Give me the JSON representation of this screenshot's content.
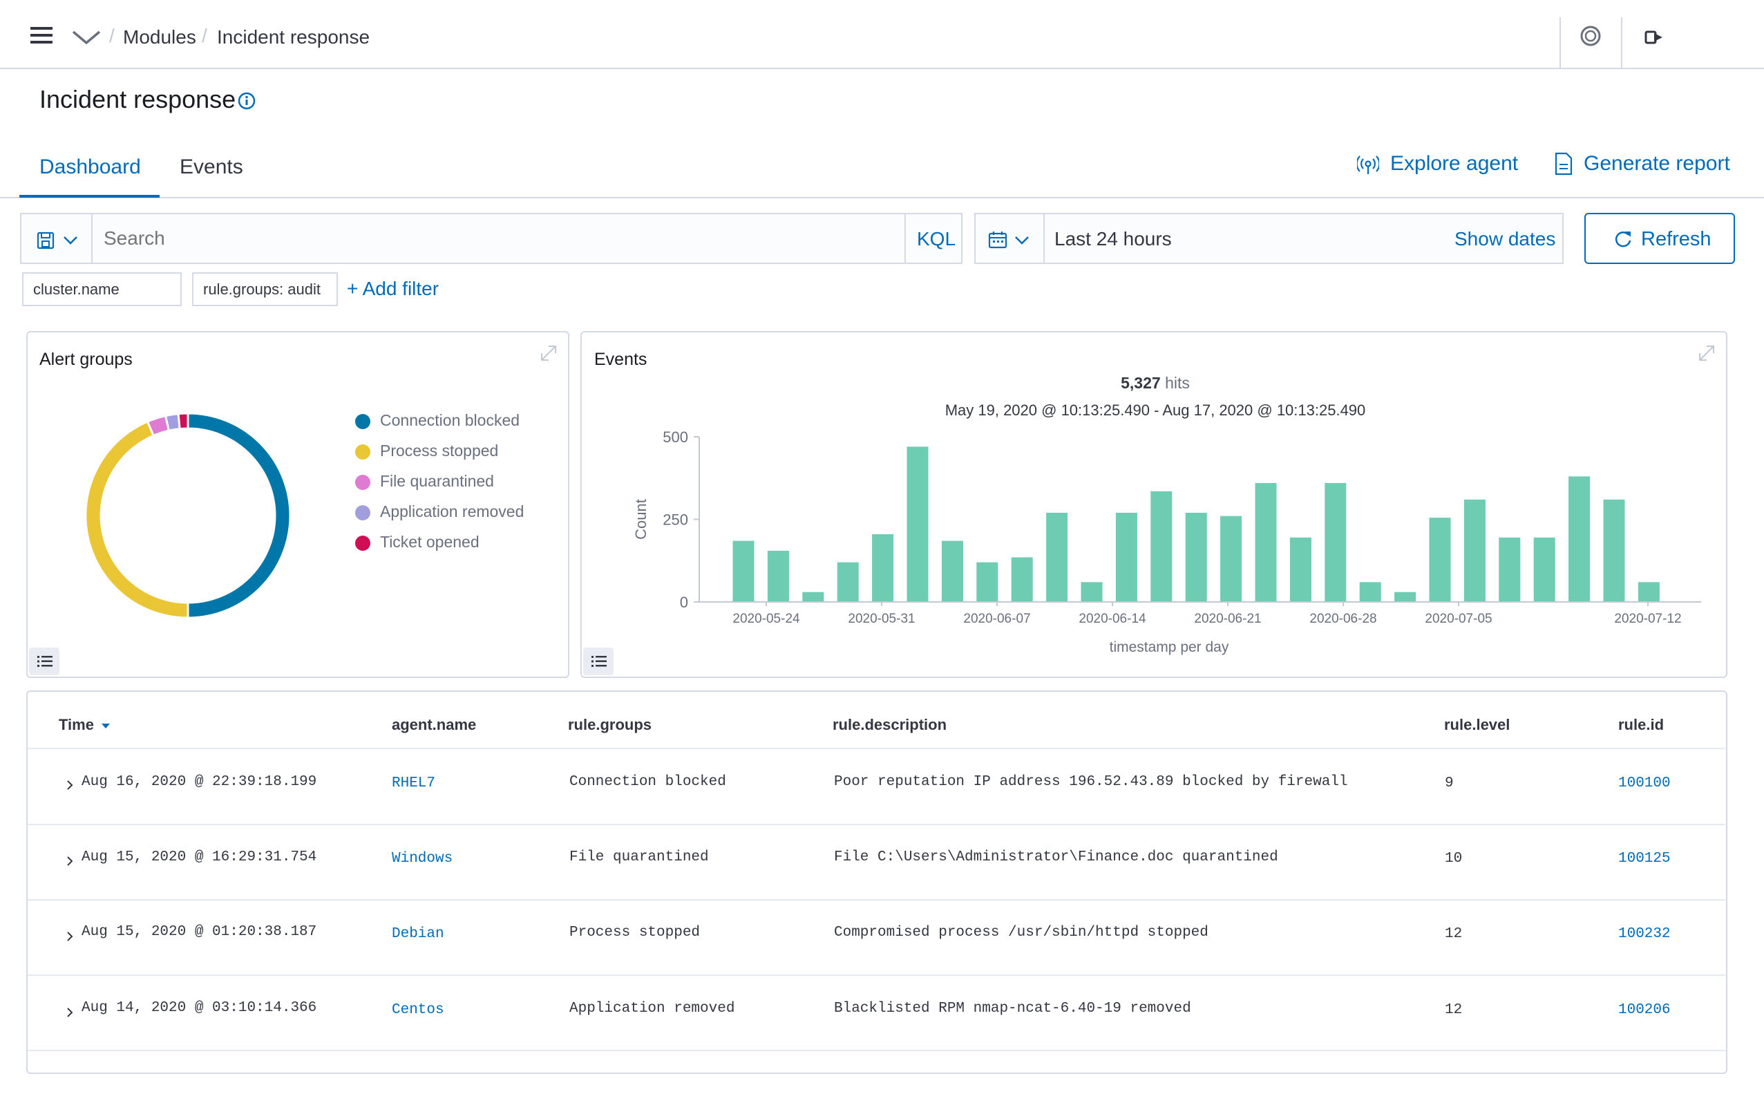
{
  "breadcrumb": {
    "parent": "Modules",
    "current": "Incident response"
  },
  "page": {
    "title": "Incident response"
  },
  "tabs": [
    {
      "label": "Dashboard",
      "active": true
    },
    {
      "label": "Events",
      "active": false
    }
  ],
  "actions": {
    "explore_agent": "Explore agent",
    "generate_report": "Generate report"
  },
  "search": {
    "placeholder": "Search",
    "language": "KQL"
  },
  "time": {
    "range": "Last 24 hours",
    "show_dates": "Show dates",
    "refresh": "Refresh"
  },
  "filters": [
    "cluster.name",
    "rule.groups: audit"
  ],
  "add_filter": "+ Add filter",
  "alert_groups": {
    "title": "Alert groups",
    "legend": [
      {
        "label": "Connection blocked",
        "color": "#0077a8"
      },
      {
        "label": "Process stopped",
        "color": "#ebc634"
      },
      {
        "label": "File quarantined",
        "color": "#e07bd4"
      },
      {
        "label": "Application removed",
        "color": "#a19ee0"
      },
      {
        "label": "Ticket opened",
        "color": "#cf0e56"
      }
    ]
  },
  "events_panel": {
    "title": "Events",
    "hits_count": "5,327",
    "hits_label": "hits",
    "range": "May 19, 2020 @ 10:13:25.490 - Aug 17, 2020 @ 10:13:25.490"
  },
  "chart_data": {
    "type": "bar",
    "xlabel": "timestamp per day",
    "ylabel": "Count",
    "ylim": [
      0,
      500
    ],
    "y_ticks": [
      "500",
      "250",
      "0"
    ],
    "x_tick_labels": [
      "2020-05-24",
      "2020-05-31",
      "2020-06-07",
      "2020-06-14",
      "2020-06-21",
      "2020-06-28",
      "2020-07-05",
      "2020-07-12"
    ],
    "bar_color": "#6dccb1",
    "values": [
      185,
      155,
      30,
      120,
      205,
      470,
      185,
      120,
      135,
      270,
      60,
      270,
      335,
      270,
      260,
      360,
      195,
      360,
      60,
      30,
      255,
      310,
      195,
      195,
      380,
      310,
      60
    ]
  },
  "table": {
    "columns": [
      "Time",
      "agent.name",
      "rule.groups",
      "rule.description",
      "rule.level",
      "rule.id"
    ],
    "rows": [
      {
        "time": "Aug 16, 2020 @ 22:39:18.199",
        "agent": "RHEL7",
        "group": "Connection blocked",
        "description": "Poor reputation IP address 196.52.43.89 blocked by firewall",
        "level": "9",
        "id": "100100"
      },
      {
        "time": "Aug 15, 2020 @ 16:29:31.754",
        "agent": "Windows",
        "group": "File quarantined",
        "description": "File C:\\Users\\Administrator\\Finance.doc quarantined",
        "level": "10",
        "id": "100125"
      },
      {
        "time": "Aug 15, 2020 @ 01:20:38.187",
        "agent": "Debian",
        "group": "Process stopped",
        "description": "Compromised process /usr/sbin/httpd stopped",
        "level": "12",
        "id": "100232"
      },
      {
        "time": "Aug 14, 2020 @ 03:10:14.366",
        "agent": "Centos",
        "group": "Application removed",
        "description": "Blacklisted RPM nmap-ncat-6.40-19 removed",
        "level": "12",
        "id": "100206"
      }
    ]
  },
  "icons": {
    "menu": "hamburger-icon",
    "collapse": "chevron-down-icon",
    "help": "help-icon",
    "logout": "logout-icon",
    "info": "info-icon",
    "explore": "broadcast-icon",
    "report": "document-icon",
    "save": "save-icon",
    "calendar": "calendar-icon",
    "refresh": "refresh-icon",
    "expand": "expand-icon",
    "list": "list-icon"
  }
}
